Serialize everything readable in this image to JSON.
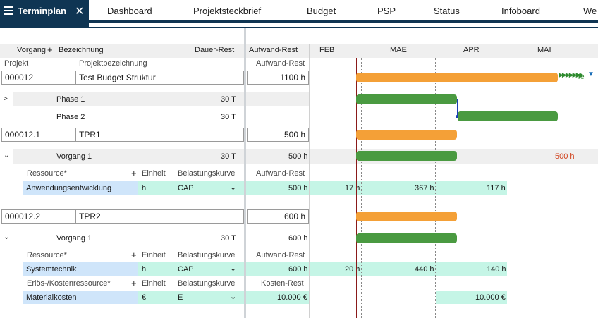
{
  "topbar": {
    "active_tab": "Terminplan",
    "tabs": [
      "Dashboard",
      "Projektsteckbrief",
      "Budget",
      "PSP",
      "Status",
      "Infoboard",
      "We"
    ]
  },
  "columns": {
    "vorgang": "Vorgang",
    "bezeichnung": "Bezeichnung",
    "dauer_rest": "Dauer-Rest",
    "aufwand_rest": "Aufwand-Rest",
    "projekt": "Projekt",
    "projektbezeichnung": "Projektbezeichnung",
    "aufwand_rest_sub": "Aufwand-Rest"
  },
  "timeline": {
    "months": [
      "FEB",
      "MAE",
      "APR",
      "MAI"
    ]
  },
  "project": {
    "id": "000012",
    "name": "Test Budget Struktur",
    "aufwand": "1100 h",
    "bar_label": "Te"
  },
  "phases": [
    {
      "name": "Phase 1",
      "dauer": "30 T"
    },
    {
      "name": "Phase 2",
      "dauer": "30 T"
    }
  ],
  "tpr1": {
    "id": "000012.1",
    "name": "TPR1",
    "aufwand": "500 h",
    "vorgang": {
      "name": "Vorgang 1",
      "dauer": "30 T",
      "aufwand": "500 h",
      "gantt_label": "500 h"
    },
    "res_header": {
      "ressource": "Ressource*",
      "einheit": "Einheit",
      "kurve": "Belastungskurve",
      "aufwand": "Aufwand-Rest"
    },
    "resource": {
      "name": "Anwendungsentwicklung",
      "einheit": "h",
      "kurve": "CAP",
      "aufwand": "500 h",
      "vals": [
        "17 h",
        "367 h",
        "117 h"
      ]
    }
  },
  "tpr2": {
    "id": "000012.2",
    "name": "TPR2",
    "aufwand": "600 h",
    "vorgang": {
      "name": "Vorgang 1",
      "dauer": "30 T",
      "aufwand": "600 h"
    },
    "res_header": {
      "ressource": "Ressource*",
      "einheit": "Einheit",
      "kurve": "Belastungskurve",
      "aufwand": "Aufwand-Rest"
    },
    "resource": {
      "name": "Systemtechnik",
      "einheit": "h",
      "kurve": "CAP",
      "aufwand": "600 h",
      "vals": [
        "20 h",
        "440 h",
        "140 h"
      ]
    },
    "cost_header": {
      "ressource": "Erlös-/Kostenressource*",
      "einheit": "Einheit",
      "kurve": "Belastungskurve",
      "kosten": "Kosten-Rest"
    },
    "cost": {
      "name": "Materialkosten",
      "einheit": "€",
      "kurve": "E",
      "kosten": "10.000 €",
      "val": "10.000 €"
    }
  },
  "colors": {
    "accent": "#0f3553",
    "orange_bar": "#f4a037",
    "green_bar": "#4a9a41",
    "mint": "#c5f5e6",
    "blue_cell": "#cfe5fa"
  }
}
